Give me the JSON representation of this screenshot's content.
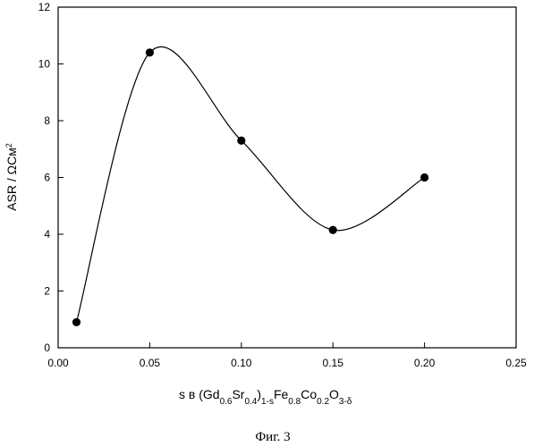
{
  "chart_data": {
    "type": "scatter",
    "title": "",
    "xlabel": "s в (Gd0.6Sr0.4)1-sFe0.8Co0.2O3-δ",
    "ylabel": "ASR / ΩСм2",
    "xlim": [
      0.0,
      0.25
    ],
    "ylim": [
      0,
      12
    ],
    "x_ticks": [
      "0.00",
      "0.05",
      "0.10",
      "0.15",
      "0.20",
      "0.25"
    ],
    "y_ticks": [
      "0",
      "2",
      "4",
      "6",
      "8",
      "10",
      "12"
    ],
    "grid": false,
    "legend": "none",
    "series": [
      {
        "x": [
          0.01,
          0.05,
          0.1,
          0.15,
          0.2
        ],
        "y": [
          0.9,
          10.4,
          7.3,
          4.15,
          6.0
        ],
        "marker": "filled-circle",
        "line": "smooth-curve",
        "color": "#000000"
      }
    ],
    "curve_peak": {
      "x": 0.057,
      "y": 10.6
    },
    "curve_trough": {
      "x": 0.152,
      "y": 4.15
    }
  },
  "caption": "Фиг. 3"
}
